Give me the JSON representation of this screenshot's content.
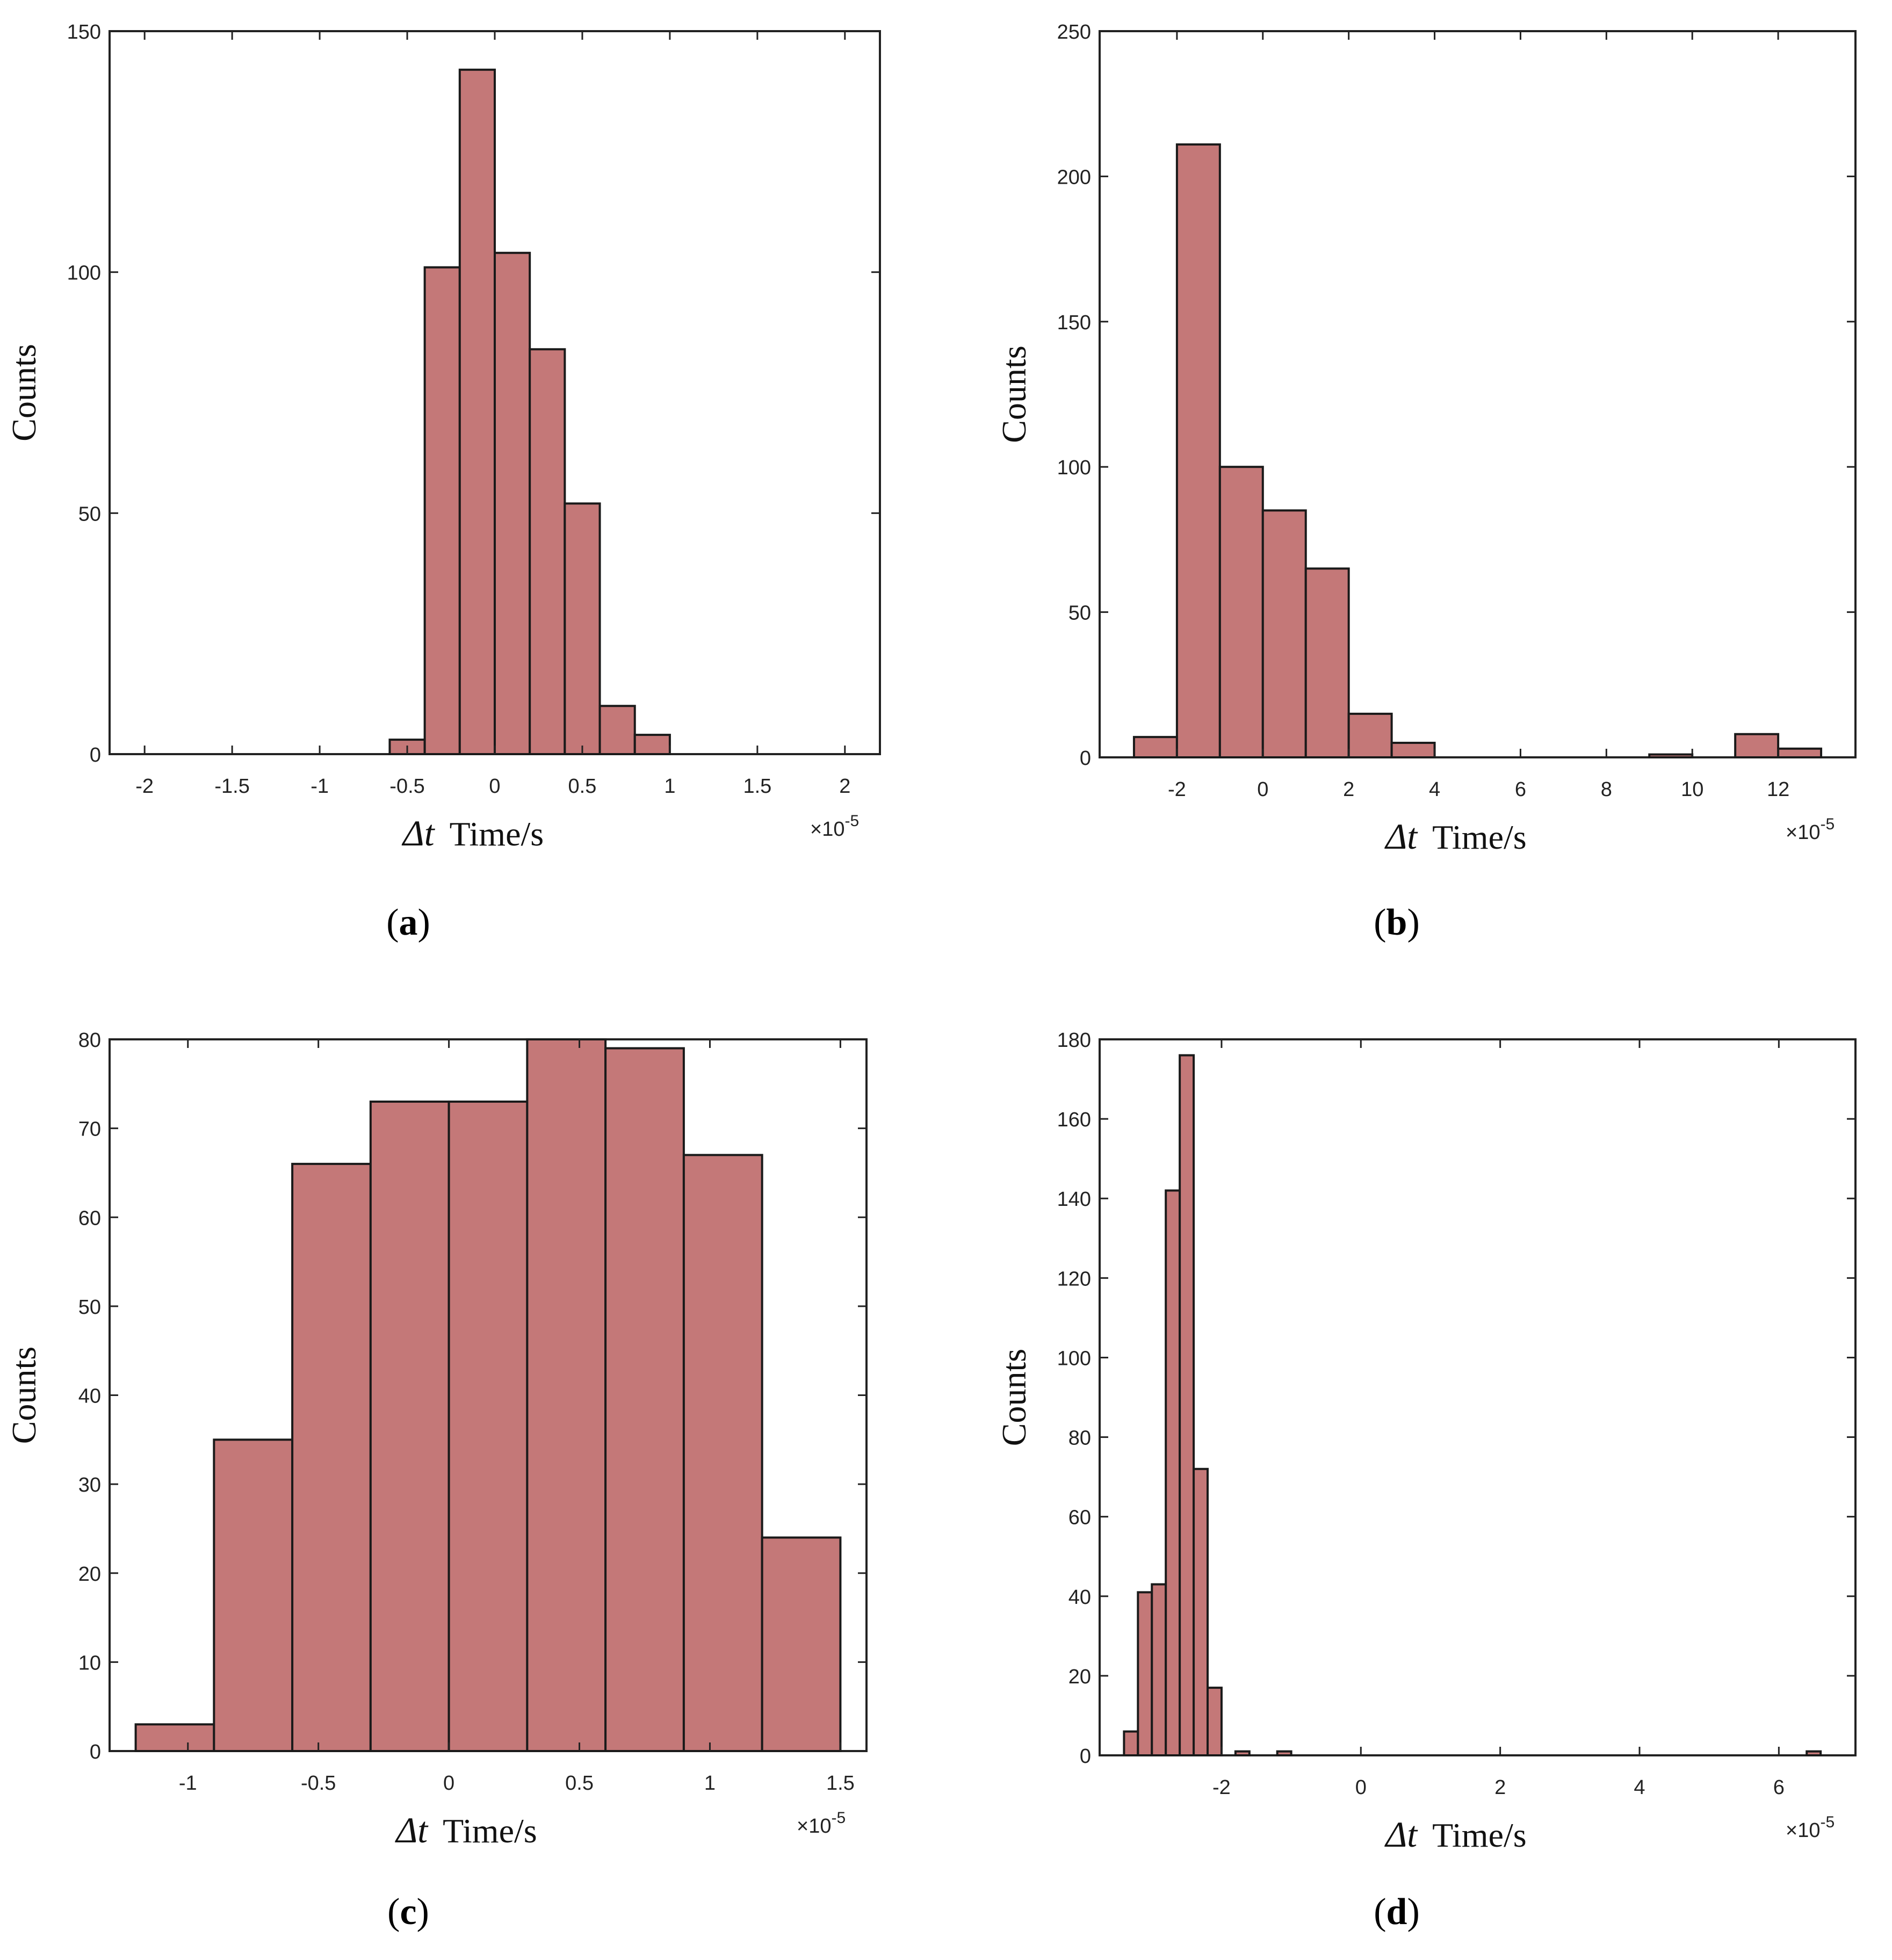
{
  "colors": {
    "bar_fill": "#c47878",
    "bar_stroke": "#1a1a1a",
    "axis": "#222222"
  },
  "chart_data": [
    {
      "type": "bar",
      "panel": "a",
      "caption": "a",
      "xlabel_symbol": "Δt",
      "xlabel": "Time/s",
      "ylabel": "Counts",
      "x_exponent_base": "×10",
      "x_exponent": "-5",
      "xlim": [
        -2.2,
        2.2
      ],
      "ylim": [
        0,
        150
      ],
      "xticks": [
        -2,
        -1.5,
        -1,
        -0.5,
        0,
        0.5,
        1,
        1.5,
        2
      ],
      "xtick_labels": [
        "-2",
        "-1.5",
        "-1",
        "-0.5",
        "0",
        "0.5",
        "1",
        "1.5",
        "2"
      ],
      "yticks": [
        0,
        50,
        100,
        150
      ],
      "ytick_labels": [
        "0",
        "50",
        "100",
        "150"
      ],
      "bin_edges": [
        -0.6,
        -0.4,
        -0.2,
        0.0,
        0.2,
        0.4,
        0.6,
        0.8,
        1.0
      ],
      "values": [
        3,
        101,
        142,
        104,
        84,
        52,
        10,
        4
      ]
    },
    {
      "type": "bar",
      "panel": "b",
      "caption": "b",
      "xlabel_symbol": "Δt",
      "xlabel": "Time/s",
      "ylabel": "Counts",
      "x_exponent_base": "×10",
      "x_exponent": "-5",
      "xlim": [
        -3.8,
        13.8
      ],
      "ylim": [
        0,
        250
      ],
      "xticks": [
        -2,
        0,
        2,
        4,
        6,
        8,
        10,
        12
      ],
      "xtick_labels": [
        "-2",
        "0",
        "2",
        "4",
        "6",
        "8",
        "10",
        "12"
      ],
      "yticks": [
        0,
        50,
        100,
        150,
        200,
        250
      ],
      "ytick_labels": [
        "0",
        "50",
        "100",
        "150",
        "200",
        "250"
      ],
      "bin_edges": [
        -3,
        -2,
        -1,
        0,
        1,
        2,
        3,
        4,
        5,
        6,
        7,
        8,
        9,
        10,
        11,
        12,
        13
      ],
      "values": [
        7,
        211,
        100,
        85,
        65,
        15,
        5,
        0,
        0,
        0,
        0,
        0,
        1,
        0,
        8,
        3
      ]
    },
    {
      "type": "bar",
      "panel": "c",
      "caption": "c",
      "xlabel_symbol": "Δt",
      "xlabel": "Time/s",
      "ylabel": "Counts",
      "x_exponent_base": "×10",
      "x_exponent": "-5",
      "xlim": [
        -1.3,
        1.6
      ],
      "ylim": [
        0,
        80
      ],
      "xticks": [
        -1,
        -0.5,
        0,
        0.5,
        1,
        1.5
      ],
      "xtick_labels": [
        "-1",
        "-0.5",
        "0",
        "0.5",
        "1",
        "1.5"
      ],
      "yticks": [
        0,
        10,
        20,
        30,
        40,
        50,
        60,
        70,
        80
      ],
      "ytick_labels": [
        "0",
        "10",
        "20",
        "30",
        "40",
        "50",
        "60",
        "70",
        "80"
      ],
      "bin_edges": [
        -1.2,
        -0.9,
        -0.6,
        -0.3,
        0.0,
        0.3,
        0.6,
        0.9,
        1.2,
        1.5
      ],
      "values": [
        3,
        35,
        66,
        73,
        73,
        80,
        79,
        67,
        24
      ]
    },
    {
      "type": "bar",
      "panel": "d",
      "caption": "d",
      "xlabel_symbol": "Δt",
      "xlabel": "Time/s",
      "ylabel": "Counts",
      "x_exponent_base": "×10",
      "x_exponent": "-5",
      "xlim": [
        -3.75,
        7.1
      ],
      "ylim": [
        0,
        180
      ],
      "xticks": [
        -2,
        0,
        2,
        4,
        6
      ],
      "xtick_labels": [
        "-2",
        "0",
        "2",
        "4",
        "6"
      ],
      "yticks": [
        0,
        20,
        40,
        60,
        80,
        100,
        120,
        140,
        160,
        180
      ],
      "ytick_labels": [
        "0",
        "20",
        "40",
        "60",
        "80",
        "100",
        "120",
        "140",
        "160",
        "180"
      ],
      "bin_edges": [
        -3.4,
        -3.2,
        -3.0,
        -2.8,
        -2.6,
        -2.4,
        -2.2,
        -2.0,
        -1.8,
        -1.6,
        -1.4,
        -1.2,
        -1.0,
        -0.8,
        -0.6,
        -0.4,
        -0.2,
        0.0,
        0.2,
        0.4,
        0.6,
        0.8,
        1.0,
        1.2,
        1.4,
        1.6,
        1.8,
        2.0,
        2.2,
        2.4,
        2.6,
        2.8,
        3.0,
        3.2,
        3.4,
        3.6,
        3.8,
        4.0,
        4.2,
        4.4,
        4.6,
        4.8,
        5.0,
        5.2,
        5.4,
        5.6,
        5.8,
        6.0,
        6.2,
        6.4,
        6.6
      ],
      "values": [
        6,
        41,
        43,
        142,
        176,
        72,
        17,
        0,
        1,
        0,
        0,
        1,
        0,
        0,
        0,
        0,
        0,
        0,
        0,
        0,
        0,
        0,
        0,
        0,
        0,
        0,
        0,
        0,
        0,
        0,
        0,
        0,
        0,
        0,
        0,
        0,
        0,
        0,
        0,
        0,
        0,
        0,
        0,
        0,
        0,
        0,
        0,
        0,
        0,
        1
      ]
    }
  ]
}
